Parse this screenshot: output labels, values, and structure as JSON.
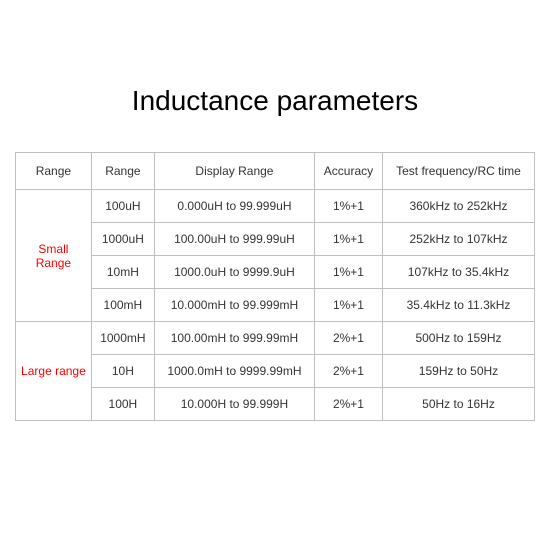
{
  "title": "Inductance parameters",
  "columns": [
    "Range",
    "Range",
    "Display Range",
    "Accuracy",
    "Test frequency/RC time"
  ],
  "groups": [
    {
      "label": "Small Range",
      "rows": [
        {
          "range": "100uH",
          "display": "0.000uH to 99.999uH",
          "accuracy": "1%+1",
          "freq": "360kHz to 252kHz"
        },
        {
          "range": "1000uH",
          "display": "100.00uH to 999.99uH",
          "accuracy": "1%+1",
          "freq": "252kHz to 107kHz"
        },
        {
          "range": "10mH",
          "display": "1000.0uH to 9999.9uH",
          "accuracy": "1%+1",
          "freq": "107kHz to 35.4kHz"
        },
        {
          "range": "100mH",
          "display": "10.000mH to 99.999mH",
          "accuracy": "1%+1",
          "freq": "35.4kHz to 11.3kHz"
        }
      ]
    },
    {
      "label": "Large range",
      "rows": [
        {
          "range": "1000mH",
          "display": "100.00mH to 999.99mH",
          "accuracy": "2%+1",
          "freq": "500Hz to 159Hz"
        },
        {
          "range": "10H",
          "display": "1000.0mH to 9999.99mH",
          "accuracy": "2%+1",
          "freq": "159Hz to 50Hz"
        },
        {
          "range": "100H",
          "display": "10.000H to 99.999H",
          "accuracy": "2%+1",
          "freq": "50Hz to 16Hz"
        }
      ]
    }
  ]
}
